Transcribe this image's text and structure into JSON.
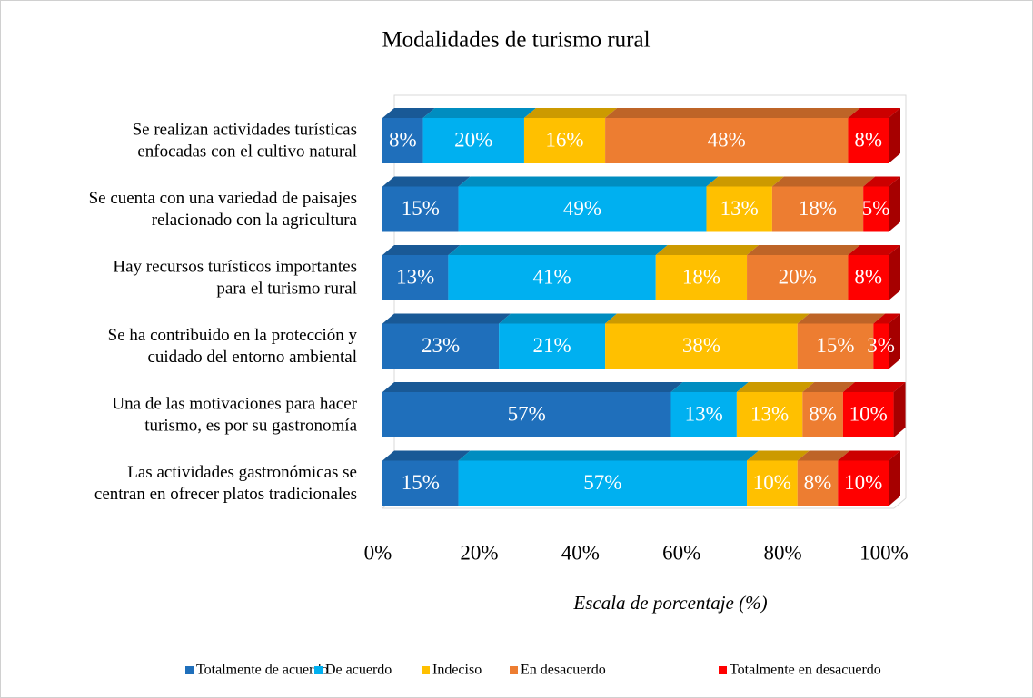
{
  "chart_data": {
    "type": "bar3d_stacked_horizontal",
    "title": "Modalidades de turismo rural",
    "categories": [
      [
        "Se realizan actividades turísticas",
        "enfocadas con el cultivo natural"
      ],
      [
        "Se cuenta con una variedad de paisajes",
        "relacionado con la agricultura"
      ],
      [
        "Hay recursos turísticos importantes",
        "para el turismo rural"
      ],
      [
        "Se ha contribuido en la protección y",
        "cuidado  del entorno ambiental"
      ],
      [
        "Una de las motivaciones para hacer",
        "turismo, es por su gastronomía"
      ],
      [
        "Las  actividades gastronómicas se",
        "centran en ofrecer platos tradicionales"
      ]
    ],
    "series": [
      {
        "name": "Totalmente de acuerdo",
        "color": "#1f6fbb",
        "values": [
          8,
          15,
          13,
          23,
          57,
          15
        ],
        "value_labels": [
          "8%",
          "15%",
          "13%",
          "23%",
          "57%",
          "15%"
        ]
      },
      {
        "name": "De acuerdo",
        "color": "#00b0f0",
        "values": [
          20,
          49,
          41,
          21,
          13,
          57
        ],
        "value_labels": [
          "20%",
          "49%",
          "41%",
          "21%",
          "13%",
          "57%"
        ]
      },
      {
        "name": "Indeciso",
        "color": "#ffc000",
        "values": [
          16,
          13,
          18,
          38,
          13,
          10
        ],
        "value_labels": [
          "16%",
          "13%",
          "18%",
          "38%",
          "13%",
          "10%"
        ]
      },
      {
        "name": "En desacuerdo",
        "color": "#ed7d31",
        "values": [
          48,
          18,
          20,
          15,
          8,
          8
        ],
        "value_labels": [
          "48%",
          "18%",
          "20%",
          "15%",
          "8%",
          "8%"
        ]
      },
      {
        "name": "Totalmente en desacuerdo",
        "color": "#ff0000",
        "values": [
          8,
          5,
          8,
          3,
          10,
          10
        ],
        "value_labels": [
          "8%",
          "5%",
          "8%",
          "3%",
          "10%",
          "10%"
        ]
      }
    ],
    "xlim": [
      0,
      100
    ],
    "xticks": [
      {
        "value": 0,
        "label": "0%"
      },
      {
        "value": 20,
        "label": "20%"
      },
      {
        "value": 40,
        "label": "40%"
      },
      {
        "value": 60,
        "label": "60%"
      },
      {
        "value": 80,
        "label": "80%"
      },
      {
        "value": 100,
        "label": "100%"
      }
    ],
    "x_label": "Escala de porcentaje (%)",
    "legend": "bottom"
  }
}
